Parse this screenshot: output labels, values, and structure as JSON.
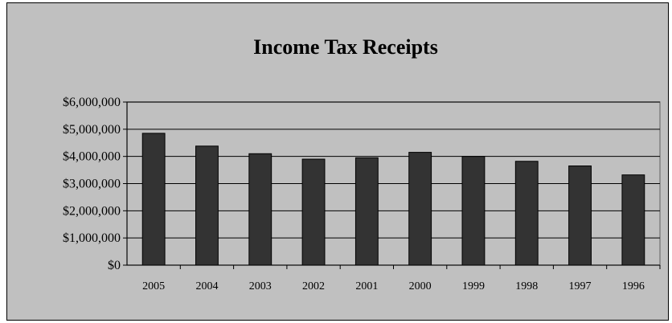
{
  "chart_data": {
    "type": "bar",
    "title": "Income Tax Receipts",
    "xlabel": "",
    "ylabel": "",
    "categories": [
      "2005",
      "2004",
      "2003",
      "2002",
      "2001",
      "2000",
      "1999",
      "1998",
      "1997",
      "1996"
    ],
    "values": [
      4850000,
      4380000,
      4100000,
      3900000,
      3950000,
      4150000,
      4000000,
      3820000,
      3650000,
      3320000
    ],
    "ylim": [
      0,
      6000000
    ],
    "yticks": [
      {
        "value": 0,
        "label": "$0"
      },
      {
        "value": 1000000,
        "label": "$1,000,000"
      },
      {
        "value": 2000000,
        "label": "$2,000,000"
      },
      {
        "value": 3000000,
        "label": "$3,000,000"
      },
      {
        "value": 4000000,
        "label": "$4,000,000"
      },
      {
        "value": 5000000,
        "label": "$5,000,000"
      },
      {
        "value": 6000000,
        "label": "$6,000,000"
      }
    ],
    "grid": true,
    "legend": "none",
    "colors": {
      "background": "#c0c0c0",
      "plot_area": "#c0c0c0",
      "bar_fill": "#333333",
      "bar_stroke": "#000000",
      "gridline": "#000000",
      "plot_border": "#808080"
    }
  }
}
